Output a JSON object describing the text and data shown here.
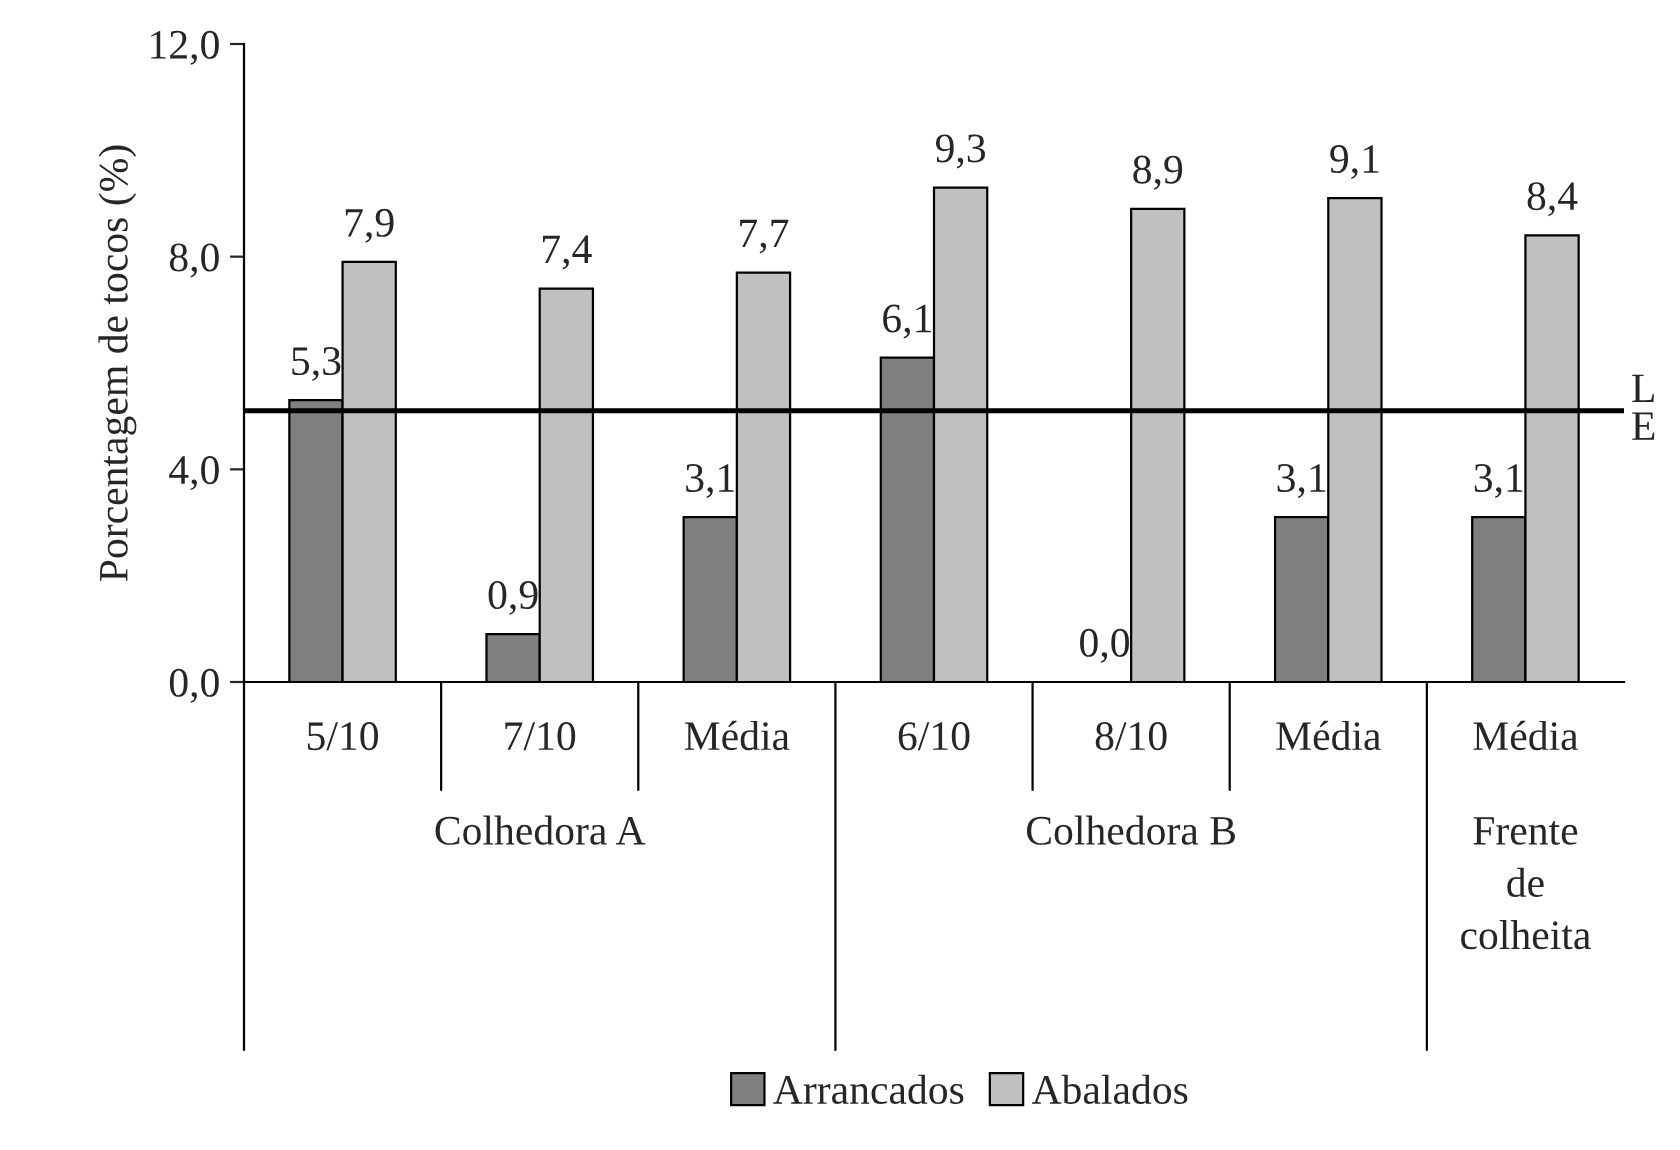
{
  "chart_data": {
    "type": "bar",
    "ylabel": "Porcentagem de tocos (%)",
    "categories": [
      "5/10",
      "7/10",
      "Média",
      "6/10",
      "8/10",
      "Média",
      "Média"
    ],
    "series": [
      {
        "name": "Arrancados",
        "color": "#808080",
        "values": [
          5.3,
          0.9,
          3.1,
          6.1,
          0.0,
          3.1,
          3.1
        ],
        "value_labels": [
          "5,3",
          "0,9",
          "3,1",
          "6,1",
          "0,0",
          "3,1",
          "3,1"
        ]
      },
      {
        "name": "Abalados",
        "color": "#c0c0c0",
        "values": [
          7.9,
          7.4,
          7.7,
          9.3,
          8.9,
          9.1,
          8.4
        ],
        "value_labels": [
          "7,9",
          "7,4",
          "7,7",
          "9,3",
          "8,9",
          "9,1",
          "8,4"
        ]
      }
    ],
    "ylim": [
      0,
      12
    ],
    "yticks": [
      {
        "value": 0,
        "label": "0,0"
      },
      {
        "value": 4,
        "label": "4,0"
      },
      {
        "value": 8,
        "label": "8,0"
      },
      {
        "value": 12,
        "label": "12,0"
      }
    ],
    "ref_lines": [
      {
        "axis": "y",
        "value": 5.1,
        "label": "LE",
        "color": "#000000"
      }
    ],
    "annotations": [
      "Colhedora A",
      "Colhedora B",
      "Frente\nde\ncolheita"
    ],
    "grid": false,
    "legend": "bottom"
  }
}
